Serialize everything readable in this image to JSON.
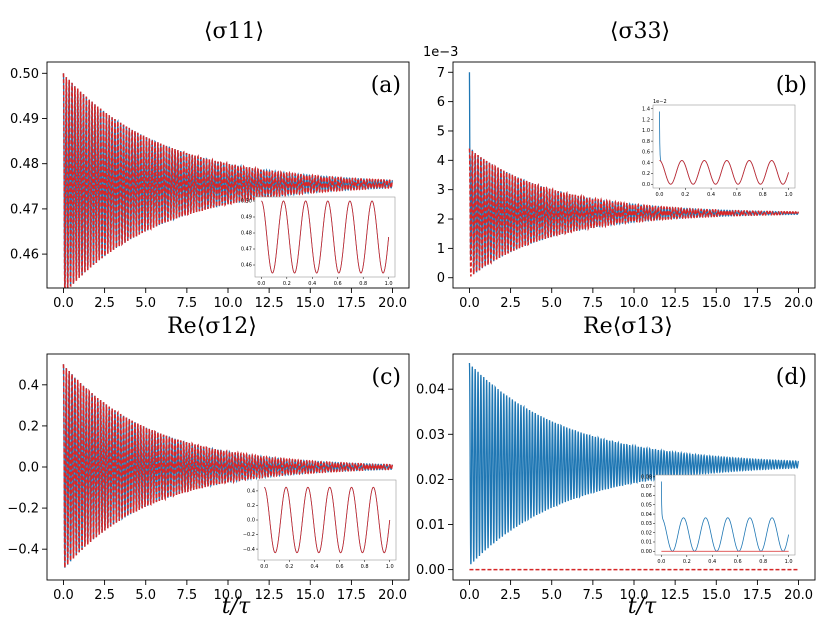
{
  "colors": {
    "blue": "#1f77b4",
    "red": "#d62728"
  },
  "chart_data": [
    {
      "id": "a",
      "type": "line",
      "title": "⟨σ11⟩",
      "panel_label": "(a)",
      "xlabel": "",
      "xlim": [
        -1,
        21
      ],
      "ylim": [
        0.4525,
        0.5025
      ],
      "xticks": [
        0,
        2.5,
        5,
        7.5,
        10,
        12.5,
        15,
        17.5,
        20
      ],
      "xtick_labels": [
        "0.0",
        "2.5",
        "5.0",
        "7.5",
        "10.0",
        "12.5",
        "15.0",
        "17.5",
        "20.0"
      ],
      "yticks": [
        0.46,
        0.47,
        0.48,
        0.49,
        0.5
      ],
      "ytick_labels": [
        "0.46",
        "0.47",
        "0.48",
        "0.49",
        "0.50"
      ],
      "offset_text": "",
      "series": [
        {
          "name": "blue",
          "color": "#1f77b4",
          "style": "solid",
          "model": "osc",
          "center": 0.4755,
          "amp0": 0.0245,
          "decay": 0.17,
          "cycles": 115,
          "t_end": 20
        },
        {
          "name": "red",
          "color": "#d62728",
          "style": "dashed",
          "model": "osc",
          "center": 0.4755,
          "amp0": 0.0245,
          "decay": 0.17,
          "cycles": 115,
          "t_end": 20
        }
      ],
      "inset": {
        "xlim": [
          -0.05,
          1.05
        ],
        "ylim": [
          0.4525,
          0.5025
        ],
        "xticks": [
          0,
          0.2,
          0.4,
          0.6,
          0.8,
          1.0
        ],
        "xtick_labels": [
          "0.0",
          "0.2",
          "0.4",
          "0.6",
          "0.8",
          "1.0"
        ],
        "yticks": [
          0.46,
          0.47,
          0.48,
          0.49,
          0.5
        ],
        "ytick_labels": [
          "0.46",
          "0.47",
          "0.48",
          "0.49",
          "0.50"
        ],
        "offset_text": "",
        "series": [
          {
            "name": "blue",
            "color": "#1f77b4",
            "style": "solid",
            "model": "osc",
            "center": 0.4775,
            "amp0": 0.0225,
            "decay": 0,
            "cycles": 5.75,
            "t_end": 1
          },
          {
            "name": "red",
            "color": "#d62728",
            "style": "solid",
            "model": "osc",
            "center": 0.4775,
            "amp0": 0.0225,
            "decay": 0,
            "cycles": 5.75,
            "t_end": 1
          }
        ]
      }
    },
    {
      "id": "b",
      "type": "line",
      "title": "⟨σ33⟩",
      "panel_label": "(b)",
      "xlabel": "",
      "xlim": [
        -1,
        21
      ],
      "ylim": [
        -0.35,
        7.35
      ],
      "xticks": [
        0,
        2.5,
        5,
        7.5,
        10,
        12.5,
        15,
        17.5,
        20
      ],
      "xtick_labels": [
        "0.0",
        "2.5",
        "5.0",
        "7.5",
        "10.0",
        "12.5",
        "15.0",
        "17.5",
        "20.0"
      ],
      "yticks": [
        0,
        1,
        2,
        3,
        4,
        5,
        6,
        7
      ],
      "ytick_labels": [
        "0",
        "1",
        "2",
        "3",
        "4",
        "5",
        "6",
        "7"
      ],
      "offset_text": "1e−3",
      "series": [
        {
          "name": "blue",
          "color": "#1f77b4",
          "style": "solid",
          "model": "osc",
          "center": 2.2,
          "amp0": 2.2,
          "decay": 0.2,
          "cycles": 115,
          "t_end": 20,
          "spike": 7.0
        },
        {
          "name": "red",
          "color": "#d62728",
          "style": "dashed",
          "model": "osc",
          "center": 2.2,
          "amp0": 2.2,
          "decay": 0.2,
          "cycles": 115,
          "t_end": 20
        }
      ],
      "inset": {
        "xlim": [
          -0.05,
          1.05
        ],
        "ylim": [
          -0.07,
          1.47
        ],
        "xticks": [
          0,
          0.2,
          0.4,
          0.6,
          0.8,
          1.0
        ],
        "xtick_labels": [
          "0.0",
          "0.2",
          "0.4",
          "0.6",
          "0.8",
          "1.0"
        ],
        "yticks": [
          0,
          0.2,
          0.4,
          0.6,
          0.8,
          1.0,
          1.2,
          1.4
        ],
        "ytick_labels": [
          "0.0",
          "0.2",
          "0.4",
          "0.6",
          "0.8",
          "1.0",
          "1.2",
          "1.4"
        ],
        "offset_text": "1e−2",
        "series": [
          {
            "name": "blue",
            "color": "#1f77b4",
            "style": "solid",
            "model": "osc",
            "center": 0.22,
            "amp0": 0.22,
            "decay": 0,
            "cycles": 5.75,
            "t_end": 1,
            "spike": 1.35
          },
          {
            "name": "red",
            "color": "#d62728",
            "style": "solid",
            "model": "osc",
            "center": 0.22,
            "amp0": 0.22,
            "decay": 0,
            "cycles": 5.75,
            "t_end": 1
          }
        ]
      }
    },
    {
      "id": "c",
      "type": "line",
      "title": "Re⟨σ12⟩",
      "panel_label": "(c)",
      "xlabel": "t/τ",
      "xlim": [
        -1,
        21
      ],
      "ylim": [
        -0.55,
        0.55
      ],
      "xticks": [
        0,
        2.5,
        5,
        7.5,
        10,
        12.5,
        15,
        17.5,
        20
      ],
      "xtick_labels": [
        "0.0",
        "2.5",
        "5.0",
        "7.5",
        "10.0",
        "12.5",
        "15.0",
        "17.5",
        "20.0"
      ],
      "yticks": [
        -0.4,
        -0.2,
        0,
        0.2,
        0.4
      ],
      "ytick_labels": [
        "−0.4",
        "−0.2",
        "0.0",
        "0.2",
        "0.4"
      ],
      "offset_text": "",
      "series": [
        {
          "name": "blue",
          "color": "#1f77b4",
          "style": "solid",
          "model": "osc",
          "center": 0,
          "amp0": 0.5,
          "decay": 0.19,
          "cycles": 115,
          "t_end": 20
        },
        {
          "name": "red",
          "color": "#d62728",
          "style": "dashed",
          "model": "osc",
          "center": 0,
          "amp0": 0.5,
          "decay": 0.19,
          "cycles": 115,
          "t_end": 20
        }
      ],
      "inset": {
        "xlim": [
          -0.05,
          1.05
        ],
        "ylim": [
          -0.55,
          0.55
        ],
        "xticks": [
          0,
          0.2,
          0.4,
          0.6,
          0.8,
          1.0
        ],
        "xtick_labels": [
          "0.0",
          "0.2",
          "0.4",
          "0.6",
          "0.8",
          "1.0"
        ],
        "yticks": [
          -0.4,
          -0.2,
          0,
          0.2,
          0.4
        ],
        "ytick_labels": [
          "−0.4",
          "−0.2",
          "0.0",
          "0.2",
          "0.4"
        ],
        "offset_text": "",
        "series": [
          {
            "name": "blue",
            "color": "#1f77b4",
            "style": "solid",
            "model": "osc",
            "center": 0,
            "amp0": 0.45,
            "decay": 0,
            "cycles": 5.75,
            "t_end": 1
          },
          {
            "name": "red",
            "color": "#d62728",
            "style": "solid",
            "model": "osc",
            "center": 0,
            "amp0": 0.45,
            "decay": 0,
            "cycles": 5.75,
            "t_end": 1
          }
        ]
      }
    },
    {
      "id": "d",
      "type": "line",
      "title": "Re⟨σ13⟩",
      "panel_label": "(d)",
      "xlabel": "t/τ",
      "xlim": [
        -1,
        21
      ],
      "ylim": [
        -0.0023,
        0.0478
      ],
      "xticks": [
        0,
        2.5,
        5,
        7.5,
        10,
        12.5,
        15,
        17.5,
        20
      ],
      "xtick_labels": [
        "0.0",
        "2.5",
        "5.0",
        "7.5",
        "10.0",
        "12.5",
        "15.0",
        "17.5",
        "20.0"
      ],
      "yticks": [
        0,
        0.01,
        0.02,
        0.03,
        0.04
      ],
      "ytick_labels": [
        "0.00",
        "0.01",
        "0.02",
        "0.03",
        "0.04"
      ],
      "offset_text": "",
      "series": [
        {
          "name": "blue",
          "color": "#1f77b4",
          "style": "solid",
          "model": "osc",
          "center": 0.0233,
          "amp0": 0.0225,
          "decay": 0.17,
          "cycles": 115,
          "t_end": 20
        },
        {
          "name": "red",
          "color": "#d62728",
          "style": "dashed",
          "model": "const",
          "value": 0,
          "t_end": 20
        }
      ],
      "inset": {
        "xlim": [
          -0.05,
          1.05
        ],
        "ylim": [
          -0.004,
          0.082
        ],
        "xticks": [
          0,
          0.2,
          0.4,
          0.6,
          0.8,
          1.0
        ],
        "xtick_labels": [
          "0.0",
          "0.2",
          "0.4",
          "0.6",
          "0.8",
          "1.0"
        ],
        "yticks": [
          0,
          0.01,
          0.02,
          0.03,
          0.04,
          0.05,
          0.06,
          0.07,
          0.08
        ],
        "ytick_labels": [
          "0.00",
          "0.01",
          "0.02",
          "0.03",
          "0.04",
          "0.05",
          "0.06",
          "0.07",
          "0.08"
        ],
        "offset_text": "",
        "series": [
          {
            "name": "blue",
            "color": "#1f77b4",
            "style": "solid",
            "model": "osc",
            "center": 0.018,
            "amp0": 0.018,
            "decay": 0,
            "cycles": 5.75,
            "t_end": 1,
            "spike": 0.075
          },
          {
            "name": "red",
            "color": "#d62728",
            "style": "solid",
            "model": "const",
            "value": 0,
            "t_end": 1
          }
        ]
      }
    }
  ]
}
